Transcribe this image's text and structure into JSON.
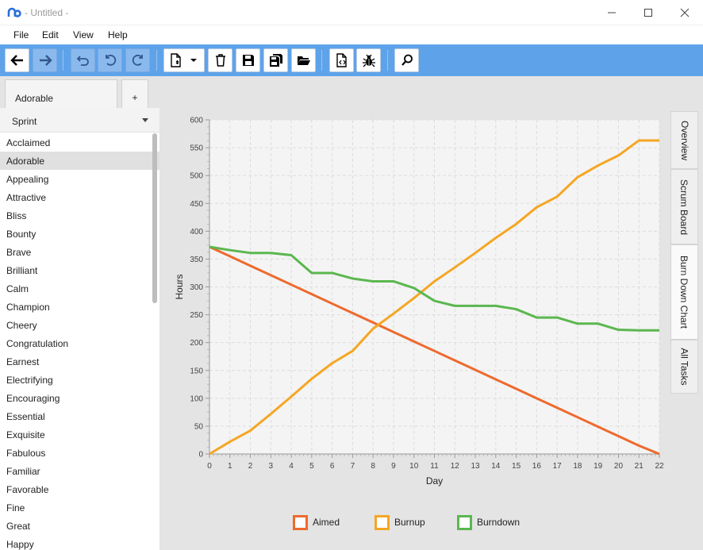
{
  "window": {
    "title": "- Untitled -",
    "controls": [
      "minimize",
      "maximize",
      "close"
    ]
  },
  "menu": [
    "File",
    "Edit",
    "View",
    "Help"
  ],
  "toolbar": {
    "buttons": [
      {
        "name": "back-button",
        "icon": "arrow-left-icon",
        "enabled": true
      },
      {
        "name": "forward-button",
        "icon": "arrow-right-icon",
        "enabled": false
      },
      {
        "name": "undo-history-button",
        "icon": "undo-icon",
        "enabled": false
      },
      {
        "name": "undo-button",
        "icon": "undo-icon",
        "enabled": false
      },
      {
        "name": "redo-button",
        "icon": "redo-icon",
        "enabled": false
      },
      {
        "name": "new-document-button",
        "icon": "new-document-icon",
        "enabled": true
      },
      {
        "name": "delete-button",
        "icon": "trash-icon",
        "enabled": true
      },
      {
        "name": "save-button",
        "icon": "floppy-icon",
        "enabled": true
      },
      {
        "name": "save-all-button",
        "icon": "floppy-multi-icon",
        "enabled": true
      },
      {
        "name": "open-button",
        "icon": "folder-open-icon",
        "enabled": true
      },
      {
        "name": "export-button",
        "icon": "code-document-icon",
        "enabled": true
      },
      {
        "name": "debug-button",
        "icon": "bug-icon",
        "enabled": true
      },
      {
        "name": "search-button",
        "icon": "search-icon",
        "enabled": true
      }
    ]
  },
  "tabs": {
    "active": "Adorable",
    "add_label": "+"
  },
  "sprint_selector": {
    "value": "Sprint"
  },
  "sprints": [
    "Acclaimed",
    "Adorable",
    "Appealing",
    "Attractive",
    "Bliss",
    "Bounty",
    "Brave",
    "Brilliant",
    "Calm",
    "Champion",
    "Cheery",
    "Congratulation",
    "Earnest",
    "Electrifying",
    "Encouraging",
    "Essential",
    "Exquisite",
    "Fabulous",
    "Familiar",
    "Favorable",
    "Fine",
    "Great",
    "Happy"
  ],
  "selected_sprint": "Adorable",
  "view_tabs": [
    "Overview",
    "Scrum Board",
    "Burn Down Chart",
    "All Tasks"
  ],
  "active_view_tab": "Burn Down Chart",
  "chart_data": {
    "type": "line",
    "xlabel": "Day",
    "ylabel": "Hours",
    "xlim": [
      0,
      22
    ],
    "ylim": [
      0,
      600
    ],
    "x_ticks": [
      0,
      1,
      2,
      3,
      4,
      5,
      6,
      7,
      8,
      9,
      10,
      11,
      12,
      13,
      14,
      15,
      16,
      17,
      18,
      19,
      20,
      21,
      22
    ],
    "y_ticks": [
      0,
      50,
      100,
      150,
      200,
      250,
      300,
      350,
      400,
      450,
      500,
      550,
      600
    ],
    "grid": true,
    "legend_position": "bottom",
    "x": [
      0,
      1,
      2,
      3,
      4,
      5,
      6,
      7,
      8,
      9,
      10,
      11,
      12,
      13,
      14,
      15,
      16,
      17,
      18,
      19,
      20,
      21,
      22
    ],
    "series": [
      {
        "name": "Aimed",
        "color": "#ee6a2e",
        "values": [
          372,
          355,
          338,
          321,
          304,
          287,
          270,
          253,
          236,
          219,
          202,
          185,
          168,
          151,
          134,
          117,
          100,
          83,
          66,
          49,
          32,
          15,
          0
        ]
      },
      {
        "name": "Burnup",
        "color": "#f5a623",
        "values": [
          0,
          22,
          42,
          72,
          103,
          135,
          163,
          185,
          225,
          252,
          280,
          310,
          335,
          361,
          388,
          413,
          443,
          462,
          497,
          518,
          536,
          563,
          563
        ]
      },
      {
        "name": "Burndown",
        "color": "#5bb74f",
        "values": [
          372,
          366,
          361,
          361,
          357,
          325,
          325,
          315,
          310,
          310,
          298,
          275,
          266,
          266,
          266,
          260,
          245,
          245,
          234,
          234,
          223,
          222,
          222
        ]
      }
    ]
  }
}
